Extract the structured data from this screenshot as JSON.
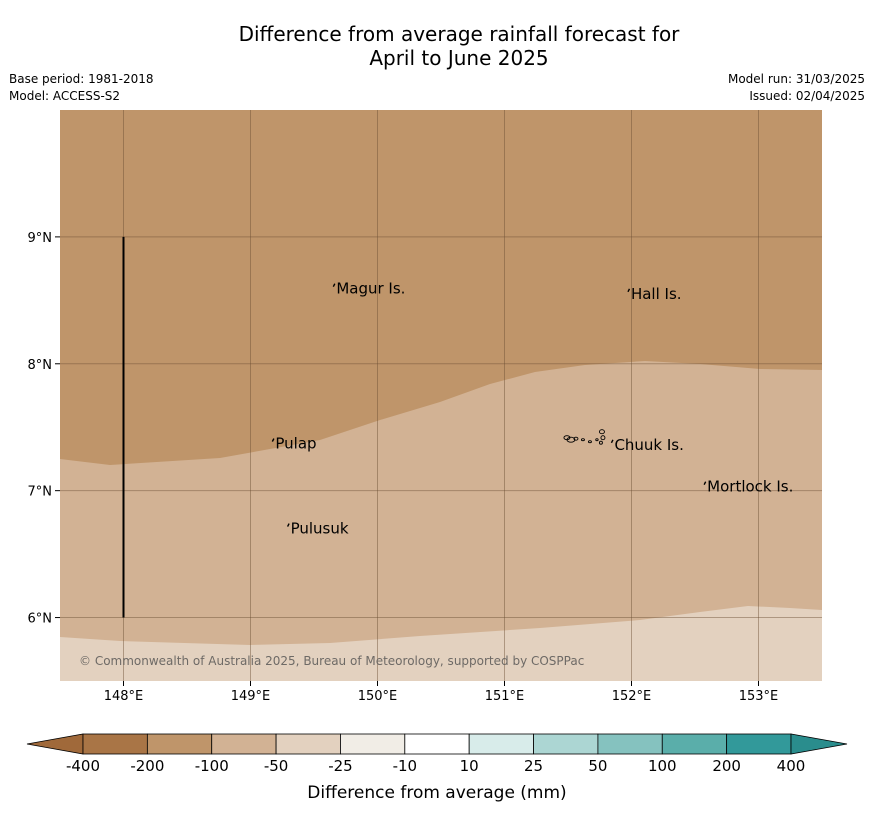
{
  "header": {
    "title_line1": "Difference from average rainfall forecast for",
    "title_line2": "April to June 2025",
    "base_period": "Base period: 1981-2018",
    "model": "Model: ACCESS-S2",
    "model_run": "Model run: 31/03/2025",
    "issued": "Issued: 02/04/2025"
  },
  "map": {
    "lon_range": [
      147.5,
      153.5
    ],
    "lat_range": [
      5.5,
      10.0
    ],
    "lon_ticks": [
      {
        "value": 148,
        "label": "148°E"
      },
      {
        "value": 149,
        "label": "149°E"
      },
      {
        "value": 150,
        "label": "150°E"
      },
      {
        "value": 151,
        "label": "151°E"
      },
      {
        "value": 152,
        "label": "152°E"
      },
      {
        "value": 153,
        "label": "153°E"
      }
    ],
    "lat_ticks": [
      {
        "value": 9,
        "label": "9°N"
      },
      {
        "value": 8,
        "label": "8°N"
      },
      {
        "value": 7,
        "label": "7°N"
      },
      {
        "value": 6,
        "label": "6°N"
      }
    ],
    "places": [
      {
        "name": "Magur Is.",
        "lon": 149.66,
        "lat": 8.56
      },
      {
        "name": "Hall Is.",
        "lon": 151.98,
        "lat": 8.52
      },
      {
        "name": "Pulap",
        "lon": 149.18,
        "lat": 7.34
      },
      {
        "name": "Chuuk Is.",
        "lon": 151.85,
        "lat": 7.33
      },
      {
        "name": "Mortlock Is.",
        "lon": 152.58,
        "lat": 7.0
      },
      {
        "name": "Pulusuk",
        "lon": 149.3,
        "lat": 6.67
      }
    ],
    "boundary_line": {
      "lon": 148.0,
      "lat_from": 6.0,
      "lat_to": 9.0
    },
    "zones": [
      {
        "category": "-200 to -100",
        "color": "#bf956a"
      },
      {
        "category": "-100 to -50",
        "color": "#d2b294"
      },
      {
        "category": "-50 to -25",
        "color": "#e3d1bf"
      }
    ],
    "copyright": "© Commonwealth of Australia 2025, Bureau of Meteorology, supported by COSPPac"
  },
  "colorbar": {
    "ticks": [
      "-400",
      "-200",
      "-100",
      "-50",
      "-25",
      "-10",
      "10",
      "25",
      "50",
      "100",
      "200",
      "400"
    ],
    "colors": [
      "#a97546",
      "#bf956a",
      "#d2b294",
      "#e3d1bf",
      "#f1ede6",
      "#ffffff",
      "#d8ecea",
      "#acd6d3",
      "#85c2bf",
      "#5aaeaa",
      "#32999a"
    ],
    "under_color": "#a0693a",
    "over_color": "#2a8d8d",
    "label": "Difference from average (mm)"
  }
}
